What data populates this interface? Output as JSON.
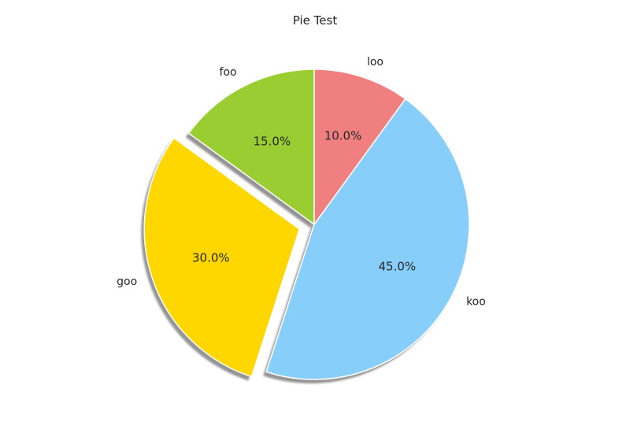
{
  "chart_data": {
    "type": "pie",
    "title": "Pie Test",
    "start_angle_deg": 90,
    "direction": "counterclockwise",
    "shadow": true,
    "slices": [
      {
        "label": "foo",
        "value": 15,
        "pct_text": "15.0%",
        "color": "#9ACD32",
        "explode": 0
      },
      {
        "label": "goo",
        "value": 30,
        "pct_text": "30.0%",
        "color": "#FFD700",
        "explode": 0.1
      },
      {
        "label": "koo",
        "value": 45,
        "pct_text": "45.0%",
        "color": "#87CEFA",
        "explode": 0
      },
      {
        "label": "loo",
        "value": 10,
        "pct_text": "10.0%",
        "color": "#F08080",
        "explode": 0
      }
    ]
  }
}
